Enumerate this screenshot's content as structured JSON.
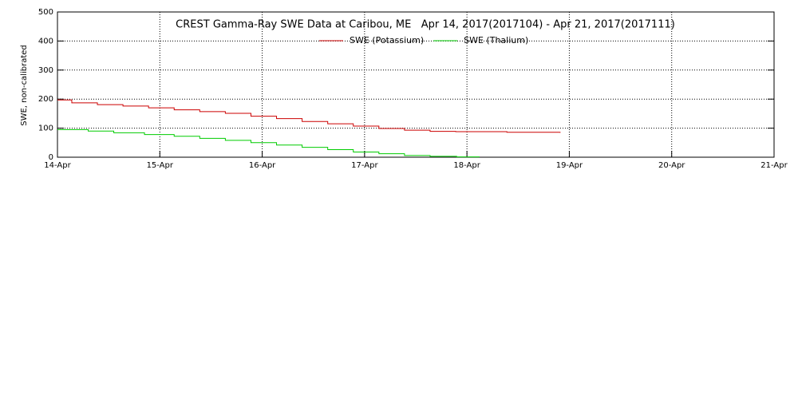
{
  "chart_data": {
    "type": "line",
    "title": "CREST Gamma-Ray SWE Data at Caribou, ME   Apr 14, 2017(2017104) - Apr 21, 2017(2017111)",
    "y_label": "SWE, non-calibrated",
    "xlim": [
      14,
      21
    ],
    "xticks": [
      {
        "value": 14,
        "label": "14-Apr"
      },
      {
        "value": 15,
        "label": "15-Apr"
      },
      {
        "value": 16,
        "label": "16-Apr"
      },
      {
        "value": 17,
        "label": "17-Apr"
      },
      {
        "value": 18,
        "label": "18-Apr"
      },
      {
        "value": 19,
        "label": "19-Apr"
      },
      {
        "value": 20,
        "label": "20-Apr"
      },
      {
        "value": 21,
        "label": "21-Apr"
      }
    ],
    "ylim": [
      0,
      500
    ],
    "yticks": [
      0,
      100,
      200,
      300,
      400,
      500
    ],
    "grid": true,
    "legend": "top",
    "series": [
      {
        "name": "SWE (Potassium)",
        "color": "#cc0000",
        "x": [
          14.0,
          14.14,
          14.39,
          14.64,
          14.89,
          15.14,
          15.39,
          15.64,
          15.89,
          16.14,
          16.39,
          16.64,
          16.89,
          17.14,
          17.39,
          17.64,
          17.89,
          18.39,
          18.91
        ],
        "values": [
          197,
          187,
          181,
          176,
          170,
          163,
          157,
          151,
          141,
          133,
          123,
          115,
          107,
          99,
          93,
          89,
          88,
          86,
          84
        ]
      },
      {
        "name": "SWE (Thalium)",
        "color": "#00cc00",
        "x": [
          14.0,
          14.3,
          14.55,
          14.85,
          15.14,
          15.39,
          15.64,
          15.89,
          16.14,
          16.39,
          16.64,
          16.89,
          17.14,
          17.39,
          17.64,
          17.9,
          18.12
        ],
        "values": [
          95,
          90,
          84,
          78,
          72,
          65,
          58,
          50,
          42,
          34,
          26,
          18,
          12,
          6,
          3,
          1,
          0
        ]
      }
    ]
  }
}
